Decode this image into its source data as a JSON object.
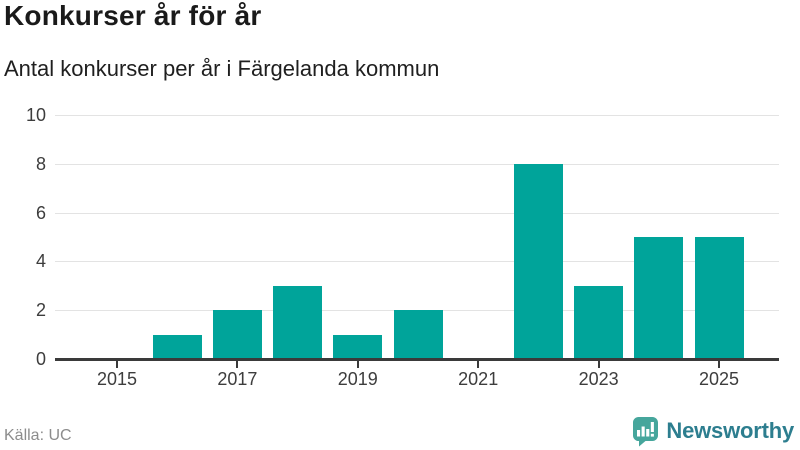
{
  "header": {
    "title": "Konkurser år för år",
    "subtitle": "Antal konkurser per år i Färgelanda kommun"
  },
  "chart_data": {
    "type": "bar",
    "title": "Konkurser år för år",
    "subtitle": "Antal konkurser per år i Färgelanda kommun",
    "categories": [
      "2015",
      "2016",
      "2017",
      "2018",
      "2019",
      "2020",
      "2021",
      "2022",
      "2023",
      "2024",
      "2025"
    ],
    "values": [
      0,
      1,
      2,
      3,
      1,
      2,
      0,
      8,
      3,
      5,
      5
    ],
    "xlabel": "",
    "ylabel": "",
    "ylim": [
      0,
      10
    ],
    "yticks": [
      0,
      2,
      4,
      6,
      8,
      10
    ],
    "xticks": [
      "2015",
      "2017",
      "2019",
      "2021",
      "2023",
      "2025"
    ],
    "grid": true,
    "legend": "none",
    "bar_color": "#00a49a"
  },
  "footer": {
    "source": "Källa: UC",
    "brand": "Newsworthy"
  },
  "colors": {
    "bar": "#00a49a",
    "axis": "#3a3a3a",
    "grid": "#e3e3e3",
    "title_text": "#1a1a1a",
    "tick_text": "#3d3d3d",
    "muted_text": "#8c8c8c",
    "brand_icon": "#46a69c",
    "brand_text": "#2d7e8f"
  }
}
